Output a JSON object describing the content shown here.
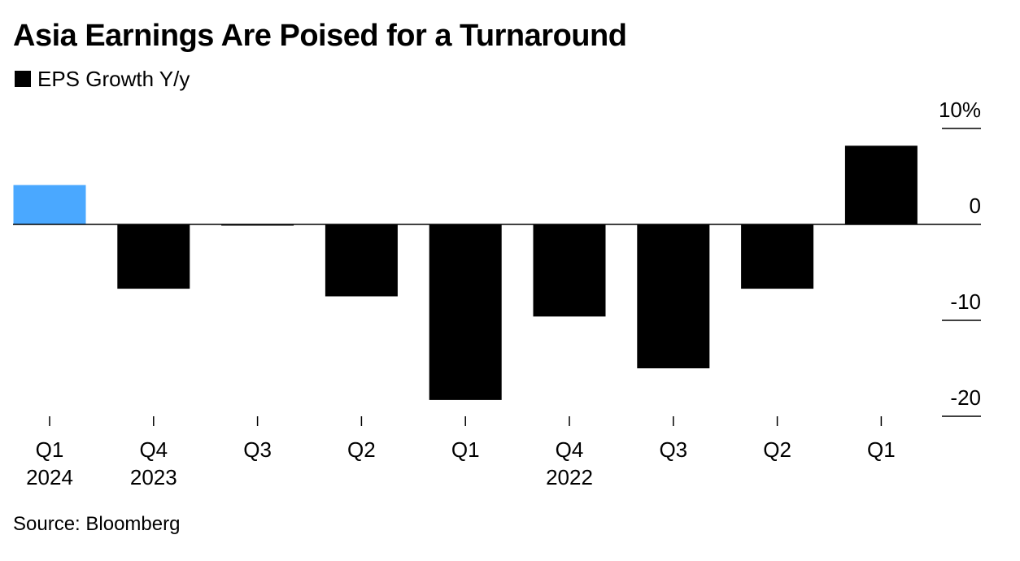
{
  "chart_data": {
    "type": "bar",
    "title": "Asia Earnings Are Poised for a Turnaround",
    "legend": [
      {
        "name": "EPS Growth Y/y",
        "color": "#000000"
      }
    ],
    "legend_placement": "top-left",
    "categories": [
      {
        "quarter": "Q1",
        "year": "2024"
      },
      {
        "quarter": "Q4",
        "year": "2023"
      },
      {
        "quarter": "Q3",
        "year": ""
      },
      {
        "quarter": "Q2",
        "year": ""
      },
      {
        "quarter": "Q1",
        "year": ""
      },
      {
        "quarter": "Q4",
        "year": "2022"
      },
      {
        "quarter": "Q3",
        "year": ""
      },
      {
        "quarter": "Q2",
        "year": ""
      },
      {
        "quarter": "Q1",
        "year": ""
      }
    ],
    "series": [
      {
        "name": "EPS Growth Y/y",
        "values": [
          4.1,
          -6.7,
          -0.1,
          -7.5,
          -18.3,
          -9.6,
          -15.0,
          -6.7,
          8.2
        ]
      }
    ],
    "bar_colors": [
      "#4aa8ff",
      "#000000",
      "#000000",
      "#000000",
      "#000000",
      "#000000",
      "#000000",
      "#000000",
      "#000000"
    ],
    "y_ticks": [
      {
        "value": 10,
        "label": "10%"
      },
      {
        "value": 0,
        "label": "0"
      },
      {
        "value": -10,
        "label": "-10"
      },
      {
        "value": -20,
        "label": "-20"
      }
    ],
    "ylim": [
      -20,
      10
    ],
    "y_axis_side": "right",
    "grid": false,
    "source": "Source: Bloomberg"
  }
}
